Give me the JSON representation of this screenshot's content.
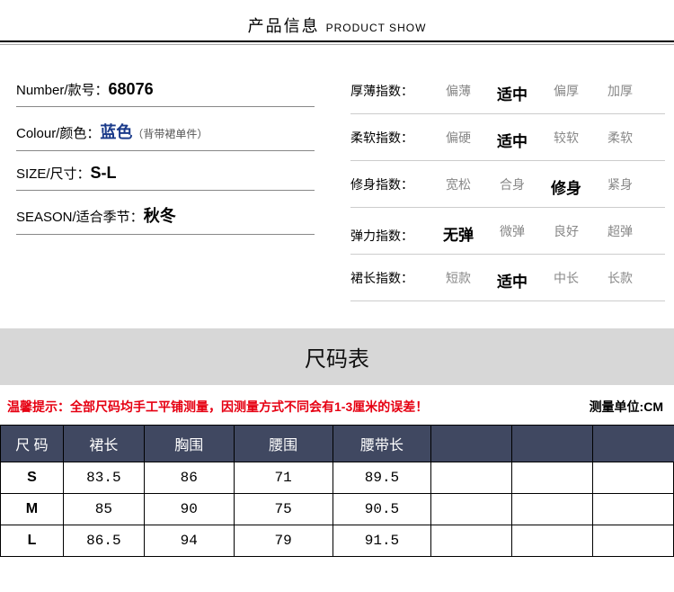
{
  "header": {
    "cn": "产品信息",
    "en": "PRODUCT SHOW"
  },
  "left": [
    {
      "label": "Number/款号：",
      "value": "68076",
      "blue": false,
      "note": ""
    },
    {
      "label": "Colour/颜色：",
      "value": "蓝色",
      "blue": true,
      "note": "（背带裙单件）"
    },
    {
      "label": "SIZE/尺寸：",
      "value": "S-L",
      "blue": false,
      "note": ""
    },
    {
      "label": "SEASON/适合季节：",
      "value": "秋冬",
      "blue": false,
      "note": ""
    }
  ],
  "indices": [
    {
      "label": "厚薄指数：",
      "options": [
        "偏薄",
        "适中",
        "偏厚",
        "加厚"
      ],
      "selected": 1
    },
    {
      "label": "柔软指数：",
      "options": [
        "偏硬",
        "适中",
        "较软",
        "柔软"
      ],
      "selected": 1
    },
    {
      "label": "修身指数：",
      "options": [
        "宽松",
        "合身",
        "修身",
        "紧身"
      ],
      "selected": 2
    },
    {
      "label": "弹力指数：",
      "options": [
        "无弹",
        "微弹",
        "良好",
        "超弹"
      ],
      "selected": 0
    },
    {
      "label": "裙长指数：",
      "options": [
        "短款",
        "适中",
        "中长",
        "长款"
      ],
      "selected": 1
    }
  ],
  "size_banner": "尺码表",
  "notice": {
    "warn": "温馨提示：全部尺码均手工平铺测量，因测量方式不同会有1-3厘米的误差！",
    "unit": "测量单位:CM"
  },
  "size_table": {
    "columns": [
      "尺 码",
      "裙长",
      "胸围",
      "腰围",
      "腰带长"
    ],
    "blank_cols": 3,
    "col_widths": [
      "70",
      "90",
      "100",
      "110",
      "110",
      "90",
      "90",
      "90"
    ],
    "rows": [
      [
        "S",
        "83.5",
        "86",
        "71",
        "89.5"
      ],
      [
        "M",
        "85",
        "90",
        "75",
        "90.5"
      ],
      [
        "L",
        "86.5",
        "94",
        "79",
        "91.5"
      ]
    ]
  },
  "colors": {
    "banner_bg": "#d7d7d7",
    "th_bg": "#404861",
    "value_blue": "#1a3a8a",
    "warn": "#e60012"
  }
}
